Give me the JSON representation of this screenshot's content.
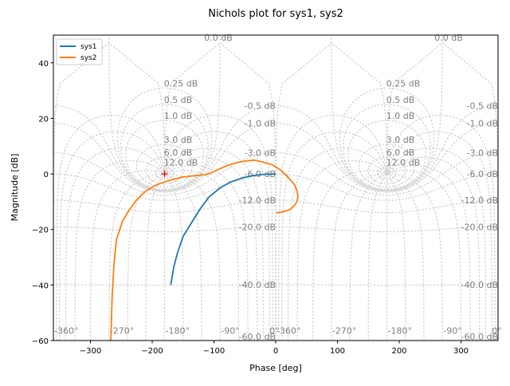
{
  "chart_data": {
    "type": "line",
    "title": "Nichols plot for sys1, sys2",
    "xlabel": "Phase [deg]",
    "ylabel": "Magnitude [dB]",
    "xlim": [
      -360,
      360
    ],
    "ylim": [
      -60,
      50
    ],
    "xticks": [
      -300,
      -200,
      -100,
      0,
      100,
      200,
      300
    ],
    "xtick_labels": [
      "−300",
      "−200",
      "−100",
      "0",
      "100",
      "200",
      "300"
    ],
    "yticks": [
      -60,
      -40,
      -20,
      0,
      20,
      40
    ],
    "ytick_labels": [
      "−60",
      "−40",
      "−20",
      "0",
      "20",
      "40"
    ],
    "legend": {
      "placement": "upper-left",
      "entries": [
        "sys1",
        "sys2"
      ]
    },
    "series": [
      {
        "name": "sys1",
        "color": "#1f77b4",
        "phase": [
          -170,
          -165,
          -159,
          -150,
          -137,
          -122,
          -108,
          -90,
          -73,
          -55,
          -38,
          -20,
          0
        ],
        "magnitude": [
          -40,
          -33.5,
          -28.4,
          -22.5,
          -17.8,
          -12.5,
          -8.3,
          -5.0,
          -2.9,
          -1.5,
          -0.6,
          -0.15,
          0
        ]
      },
      {
        "name": "sys2",
        "color": "#ff7f0e",
        "phase": [
          -267,
          -265,
          -262,
          -258,
          -248,
          -237,
          -225,
          -211,
          -196,
          -180,
          -165,
          -150,
          -130,
          -115,
          -105,
          -95,
          -80,
          -65,
          -51,
          -35,
          -21,
          -5,
          8,
          20,
          30,
          35,
          36,
          34,
          31,
          24,
          14,
          1
        ],
        "magnitude": [
          -60,
          -45,
          -33,
          -23.6,
          -17,
          -12.9,
          -9.3,
          -6.3,
          -4.2,
          -2.9,
          -1.9,
          -1.1,
          -0.6,
          -0.3,
          0.3,
          1.4,
          2.9,
          4.0,
          4.6,
          5.0,
          4.3,
          3.2,
          1.4,
          -1.2,
          -3.8,
          -6.3,
          -8.5,
          -10,
          -11.2,
          -12.7,
          -13.5,
          -14
        ]
      }
    ],
    "marker": {
      "phase": -180,
      "magnitude": 0,
      "symbol": "+",
      "color": "#ff0000"
    },
    "grid": {
      "on": true,
      "closed_loop_magnitudes_db": [
        -60,
        -40,
        -20,
        -12,
        -6,
        -3,
        -1,
        -0.5,
        0,
        0.25,
        0.5,
        1,
        3,
        6,
        12
      ],
      "magnitude_labels": [
        "-60.0 dB",
        "-40.0 dB",
        "-20.0 dB",
        "-12.0 dB",
        "-6.0 dB",
        "-3.0 dB",
        "-1.0 dB",
        "-0.5 dB",
        "0.0 dB",
        "0.25 dB",
        "0.5 dB",
        "1.0 dB",
        "3.0 dB",
        "6.0 dB",
        "12.0 dB"
      ],
      "closed_loop_phases_deg": [
        -359.75,
        -355,
        -350,
        -340,
        -325,
        -300,
        -270,
        -240,
        -210,
        -180,
        -150,
        -120,
        -90,
        -60,
        -45,
        -30,
        -20,
        -10,
        -5,
        -0.25
      ],
      "phase_labels": [
        "-360°",
        "-270°",
        "-180°",
        "-90°",
        "0°"
      ],
      "phase_label_values": [
        -360,
        -270,
        -180,
        -90,
        0
      ],
      "color": "#d3d3d3"
    }
  }
}
